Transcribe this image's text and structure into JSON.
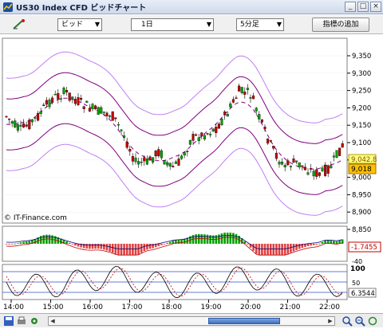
{
  "window": {
    "title": "US30 Index CFD ビッドチャート",
    "buttons": {
      "minimize": "_",
      "restore": "□",
      "close": "×"
    }
  },
  "toolbar": {
    "price_type": "ビッド",
    "period": "1日",
    "interval": "5分足",
    "add_indicator_label": "指標の追加",
    "dropdown_arrow": "▼"
  },
  "chart": {
    "copyright": "© IT-Finance.com",
    "price_axis_labels": [
      "9,350",
      "9,300",
      "9,250",
      "9,200",
      "9,150",
      "9,100",
      "9,050",
      "9,000",
      "8,950",
      "8,900",
      "8,850"
    ],
    "price_tag_high": "9,042.8",
    "price_tag_current": "9,018",
    "macd_value": "-1.7455",
    "macd_axis_label": "-40",
    "stoch_axis_top": "100",
    "stoch_axis_mid": "50",
    "stoch_value": "6.3544",
    "time_labels": [
      "14:00",
      "15:00",
      "16:00",
      "17:00",
      "18:00",
      "19:00",
      "20:00",
      "21:00",
      "22:00"
    ],
    "colors": {
      "up": "#00a000",
      "down": "#c00000",
      "band": "#800080",
      "outer_band": "#c080f0",
      "tag": "#ffc000"
    }
  }
}
